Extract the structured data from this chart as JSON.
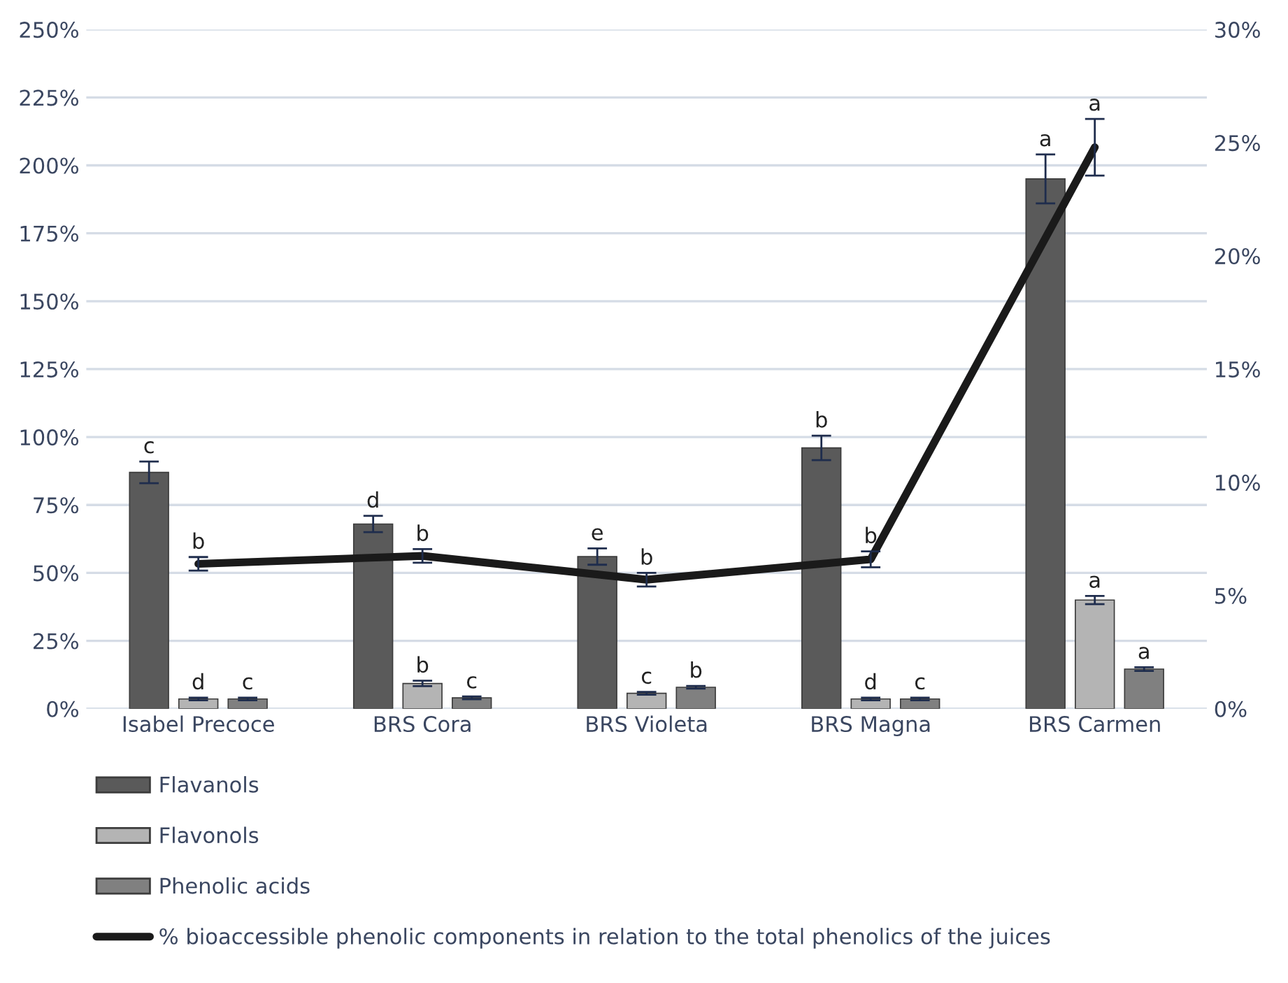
{
  "chart_data": {
    "type": "bar",
    "categories": [
      "Isabel Precoce",
      "BRS Cora",
      "BRS Violeta",
      "BRS Magna",
      "BRS Carmen"
    ],
    "series": [
      {
        "name": "Flavanols",
        "color": "#5a5a5a",
        "values": [
          87,
          68,
          56,
          96,
          195
        ],
        "errors": [
          4,
          3,
          3,
          4.5,
          9
        ],
        "value_labels": [
          "c",
          "d",
          "e",
          "b",
          "a"
        ]
      },
      {
        "name": "Flavonols",
        "color": "#b4b4b4",
        "values": [
          3.6,
          9.3,
          5.7,
          3.6,
          40
        ],
        "errors": [
          0.5,
          1,
          0.5,
          0.5,
          1.5
        ],
        "value_labels": [
          "d",
          "b",
          "c",
          "d",
          "a"
        ]
      },
      {
        "name": "Phenolic acids",
        "color": "#808080",
        "values": [
          3.6,
          4,
          7.9,
          3.6,
          14.6
        ],
        "errors": [
          0.5,
          0.5,
          0.5,
          0.5,
          0.7
        ],
        "value_labels": [
          "c",
          "c",
          "b",
          "c",
          "a"
        ]
      },
      {
        "name": "% bioaccessible phenolic components in relation to the total phenolics of the juices",
        "type": "line",
        "axis": "y2",
        "color": "#1a1a1a",
        "values": [
          6.4,
          6.75,
          5.7,
          6.6,
          24.8
        ],
        "errors": [
          0.3,
          0.3,
          0.3,
          0.35,
          1.25
        ],
        "value_labels": [
          "b",
          "b",
          "b",
          "b",
          "a"
        ]
      }
    ],
    "ylim": [
      0,
      250
    ],
    "yticks": [
      {
        "value": 0,
        "label": "0%"
      },
      {
        "value": 25,
        "label": "25%"
      },
      {
        "value": 50,
        "label": "50%"
      },
      {
        "value": 75,
        "label": "75%"
      },
      {
        "value": 100,
        "label": "100%"
      },
      {
        "value": 125,
        "label": "125%"
      },
      {
        "value": 150,
        "label": "150%"
      },
      {
        "value": 175,
        "label": "175%"
      },
      {
        "value": 200,
        "label": "200%"
      },
      {
        "value": 225,
        "label": "225%"
      },
      {
        "value": 250,
        "label": "250%"
      }
    ],
    "y2lim": [
      0,
      30
    ],
    "y2ticks": [
      {
        "value": 0,
        "label": "0%"
      },
      {
        "value": 5,
        "label": "5%"
      },
      {
        "value": 10,
        "label": "10%"
      },
      {
        "value": 15,
        "label": "15%"
      },
      {
        "value": 20,
        "label": "20%"
      },
      {
        "value": 25,
        "label": "25%"
      },
      {
        "value": 30,
        "label": "30%"
      }
    ],
    "grid": "y",
    "legend": "bottom"
  }
}
